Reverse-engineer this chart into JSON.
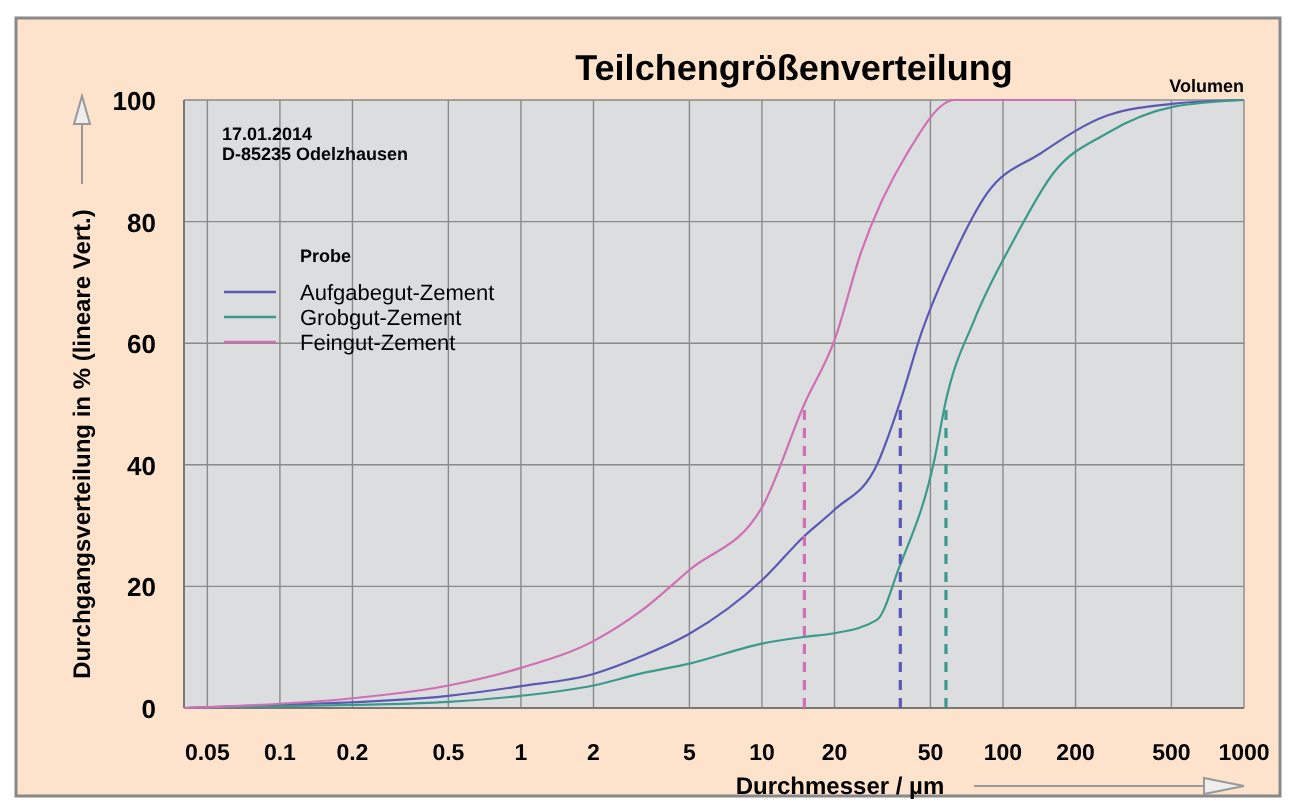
{
  "chart_data": {
    "type": "line",
    "title": "Teilchengrößenverteilung",
    "xlabel": "Durchmesser / µm",
    "ylabel": "Durchgangsverteilung in % (lineare Vert.)",
    "legend_title": "Probe",
    "legend": "top left",
    "log": "x",
    "grid": true,
    "xlim": [
      0.04,
      1000
    ],
    "ylim": [
      0,
      100
    ],
    "xticks": [
      0.05,
      0.1,
      0.2,
      0.5,
      1,
      2,
      5,
      10,
      20,
      50,
      100,
      200,
      500,
      1000
    ],
    "yticks": [
      0,
      20,
      40,
      60,
      80,
      100
    ],
    "annotations": [
      "17.01.2014",
      "D-85235 Odelzhausen",
      {
        "text": "Volumen",
        "x": 1000,
        "y": 100
      }
    ],
    "series": [
      {
        "name": "Aufgabegut-Zement",
        "color": "#5a5ab4",
        "x": [
          0.04,
          0.1,
          0.5,
          1,
          2,
          3.16,
          5,
          10,
          15,
          20,
          30,
          37.6,
          45.8,
          63,
          85.7,
          143,
          269,
          513,
          1000
        ],
        "values": [
          0,
          0.5,
          2,
          3.6,
          5.6,
          8.5,
          12.2,
          21,
          28.3,
          32.6,
          40,
          50.6,
          61.6,
          74.8,
          84.6,
          91.2,
          97.4,
          99.4,
          100
        ]
      },
      {
        "name": "Grobgut-Zement",
        "color": "#3a9a8c",
        "x": [
          0.04,
          0.2,
          0.5,
          1,
          2,
          3.16,
          5,
          10,
          15,
          20,
          30,
          37,
          51.9,
          58,
          76,
          111,
          162,
          269,
          513,
          1000
        ],
        "values": [
          0,
          0.5,
          1,
          2,
          3.7,
          5.7,
          7.3,
          10.6,
          11.7,
          12.3,
          14.5,
          23,
          40.8,
          50.6,
          63.8,
          77,
          88,
          94.5,
          98.9,
          100
        ]
      },
      {
        "name": "Feingut-Zement",
        "color": "#d070b4",
        "x": [
          0.04,
          0.2,
          0.5,
          1,
          2,
          3.16,
          5,
          10,
          15,
          20,
          25.7,
          40,
          63,
          200
        ],
        "values": [
          0,
          1.6,
          3.7,
          6.6,
          11,
          16,
          22.7,
          33,
          50,
          60.5,
          74.8,
          91.2,
          100,
          100
        ]
      },
      {
        "color": "#d070b4",
        "line_style": "dashed",
        "x": [
          15,
          15
        ],
        "values": [
          0,
          50
        ]
      },
      {
        "color": "#5a5ab4",
        "line_style": "dashed",
        "x": [
          37.5,
          37.5
        ],
        "values": [
          0,
          50
        ]
      },
      {
        "color": "#3a9a8c",
        "line_style": "dashed",
        "x": [
          58,
          58
        ],
        "values": [
          0,
          50
        ]
      }
    ]
  }
}
